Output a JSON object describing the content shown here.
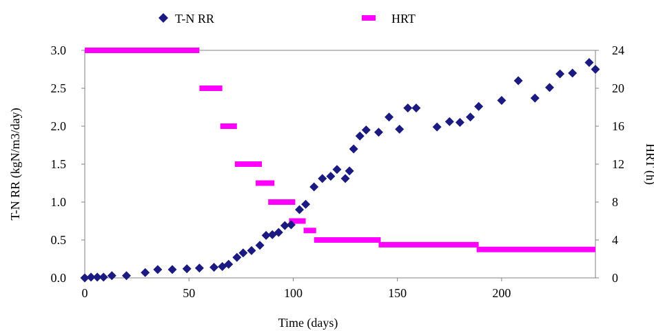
{
  "chart_data": {
    "type": "scatter",
    "xlabel": "Time (days)",
    "ylabel_left": "T-N RR (kgN/m3/day)",
    "ylabel_right": "HRT (h)",
    "xlim": [
      0,
      245
    ],
    "ylim_left": [
      0,
      3.0
    ],
    "ylim_right": [
      0,
      24
    ],
    "x_ticks": [
      "0",
      "50",
      "100",
      "150",
      "200"
    ],
    "y_left_ticks": [
      "0.0",
      "0.5",
      "1.0",
      "1.5",
      "2.0",
      "2.5",
      "3.0"
    ],
    "y_right_ticks": [
      "0",
      "4",
      "8",
      "12",
      "16",
      "20",
      "24"
    ],
    "legend_position": "top",
    "series": [
      {
        "name": "T-N RR",
        "axis": "left",
        "marker": "diamond",
        "color": "#1a1a80",
        "points": [
          [
            0,
            0.0
          ],
          [
            3,
            0.01
          ],
          [
            6,
            0.01
          ],
          [
            9,
            0.01
          ],
          [
            13,
            0.03
          ],
          [
            20,
            0.03
          ],
          [
            29,
            0.07
          ],
          [
            35,
            0.11
          ],
          [
            42,
            0.11
          ],
          [
            49,
            0.12
          ],
          [
            55,
            0.13
          ],
          [
            62,
            0.14
          ],
          [
            66,
            0.15
          ],
          [
            69,
            0.18
          ],
          [
            73,
            0.27
          ],
          [
            76,
            0.33
          ],
          [
            80,
            0.36
          ],
          [
            84,
            0.43
          ],
          [
            87,
            0.56
          ],
          [
            90,
            0.57
          ],
          [
            93,
            0.6
          ],
          [
            96,
            0.69
          ],
          [
            99,
            0.7
          ],
          [
            103,
            0.9
          ],
          [
            106,
            0.97
          ],
          [
            110,
            1.2
          ],
          [
            114,
            1.31
          ],
          [
            118,
            1.34
          ],
          [
            121,
            1.43
          ],
          [
            125,
            1.31
          ],
          [
            127,
            1.41
          ],
          [
            129,
            1.7
          ],
          [
            132,
            1.87
          ],
          [
            135,
            1.95
          ],
          [
            141,
            1.92
          ],
          [
            146,
            2.12
          ],
          [
            151,
            1.96
          ],
          [
            155,
            2.24
          ],
          [
            159,
            2.24
          ],
          [
            169,
            1.99
          ],
          [
            175,
            2.06
          ],
          [
            180,
            2.05
          ],
          [
            185,
            2.12
          ],
          [
            189,
            2.26
          ],
          [
            200,
            2.34
          ],
          [
            208,
            2.6
          ],
          [
            216,
            2.37
          ],
          [
            223,
            2.51
          ],
          [
            228,
            2.69
          ],
          [
            234,
            2.7
          ],
          [
            242,
            2.84
          ],
          [
            245,
            2.75
          ]
        ]
      },
      {
        "name": "HRT",
        "axis": "right",
        "marker": "bar",
        "color": "#ff00ff",
        "segments": [
          [
            0,
            55,
            24
          ],
          [
            55,
            66,
            20
          ],
          [
            65,
            73,
            16
          ],
          [
            72,
            85,
            12
          ],
          [
            82,
            91,
            10
          ],
          [
            88,
            101,
            8
          ],
          [
            98,
            106,
            6
          ],
          [
            105,
            111,
            5
          ],
          [
            110,
            142,
            4
          ],
          [
            141,
            189,
            3.5
          ],
          [
            188,
            245,
            3
          ]
        ]
      }
    ]
  }
}
